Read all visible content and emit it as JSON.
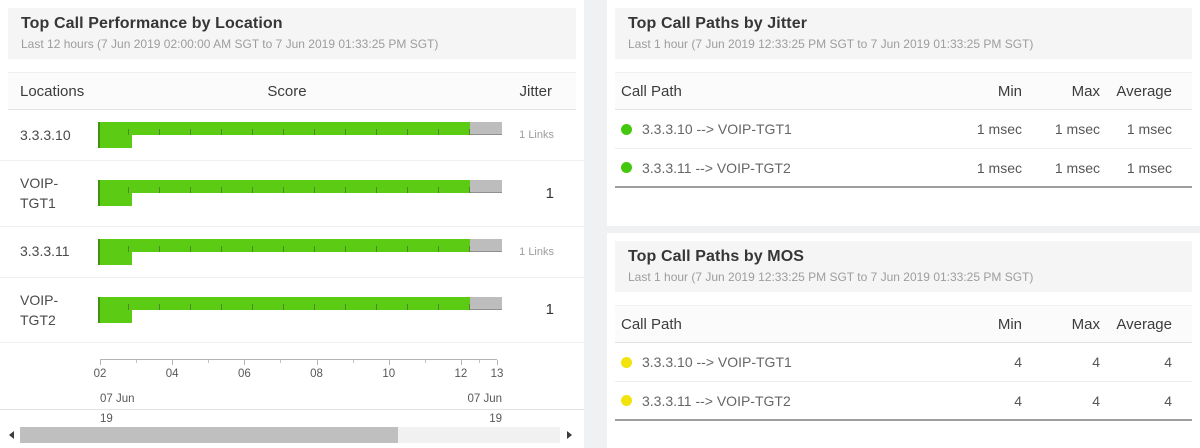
{
  "left_panel": {
    "title": "Top Call Performance by Location",
    "subtitle": "Last 12 hours (7 Jun 2019 02:00:00 AM SGT to 7 Jun 2019 01:33:25 PM SGT)",
    "columns": {
      "locations": "Locations",
      "score": "Score",
      "jitter": "Jitter"
    },
    "rows": [
      {
        "location": "3.3.3.10",
        "jitter": "1 Links",
        "score_green_pct": 92,
        "score_tail_pct": 8,
        "recent_bar_pct": 8.5
      },
      {
        "location": "VOIP-TGT1",
        "jitter": "1",
        "score_green_pct": 92,
        "score_tail_pct": 8,
        "recent_bar_pct": 8.5
      },
      {
        "location": "3.3.3.11",
        "jitter": "1 Links",
        "score_green_pct": 92,
        "score_tail_pct": 8,
        "recent_bar_pct": 8.5
      },
      {
        "location": "VOIP-TGT2",
        "jitter": "1",
        "score_green_pct": 92,
        "score_tail_pct": 8,
        "recent_bar_pct": 8.5
      }
    ],
    "axis": {
      "ticks": [
        "02",
        "04",
        "06",
        "08",
        "10",
        "12",
        "13"
      ],
      "start_date": "07 Jun",
      "start_year": "19",
      "end_date": "07 Jun",
      "end_year": "19"
    },
    "scrollbar": {
      "thumb_pct": 70
    }
  },
  "jitter_panel": {
    "title": "Top Call Paths by Jitter",
    "subtitle": "Last 1 hour (7 Jun 2019 12:33:25 PM SGT to 7 Jun 2019 01:33:25 PM SGT)",
    "columns": {
      "call_path": "Call Path",
      "min": "Min",
      "max": "Max",
      "average": "Average"
    },
    "rows": [
      {
        "path": "3.3.3.10 --> VOIP-TGT1",
        "min": "1 msec",
        "max": "1 msec",
        "average": "1 msec",
        "status_color": "#43c80e"
      },
      {
        "path": "3.3.3.11 --> VOIP-TGT2",
        "min": "1 msec",
        "max": "1 msec",
        "average": "1 msec",
        "status_color": "#43c80e"
      }
    ]
  },
  "mos_panel": {
    "title": "Top Call Paths by MOS",
    "subtitle": "Last 1 hour (7 Jun 2019 12:33:25 PM SGT to 7 Jun 2019 01:33:25 PM SGT)",
    "columns": {
      "call_path": "Call Path",
      "min": "Min",
      "max": "Max",
      "average": "Average"
    },
    "rows": [
      {
        "path": "3.3.3.10 --> VOIP-TGT1",
        "min": "4",
        "max": "4",
        "average": "4",
        "status_color": "#f2e30c"
      },
      {
        "path": "3.3.3.11 --> VOIP-TGT2",
        "min": "4",
        "max": "4",
        "average": "4",
        "status_color": "#f2e30c"
      }
    ]
  },
  "colors": {
    "score_bar_green": "#5bcb14",
    "score_bar_tail_gray": "#bdbdbd",
    "jitter_dot_green": "#43c80e",
    "mos_dot_yellow": "#f2e30c",
    "panel_header_bg": "#f5f5f5"
  }
}
